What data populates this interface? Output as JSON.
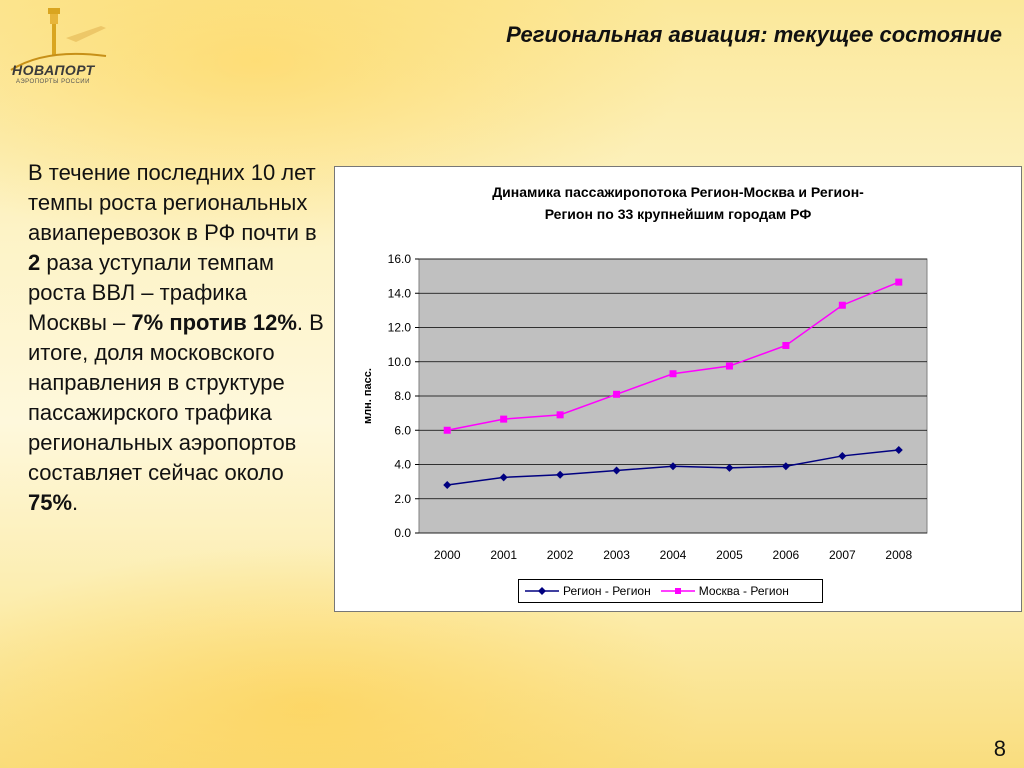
{
  "header": {
    "logo_name": "НОВАПОРТ",
    "logo_sub": "АЭРОПОРТЫ РОССИИ",
    "title": "Региональная авиация: текущее состояние"
  },
  "body": {
    "t1": "В течение последних 10 лет темпы роста региональных авиаперевозок в РФ почти в ",
    "b1": "2",
    "t2": " раза уступали темпам роста ВВЛ – трафика Москвы – ",
    "b2": "7% против 12%",
    "t3": ". В итоге, доля московского направления в структуре пассажирского трафика региональных аэропортов составляет сейчас около ",
    "b3": "75%",
    "t4": "."
  },
  "page_number": "8",
  "colors": {
    "series1": "#000080",
    "series2": "#ff00ff",
    "plot_bg": "#c0c0c0"
  },
  "chart_data": {
    "type": "line",
    "title_line1": "Динамика пассажиропотока Регион-Москва и Регион-",
    "title_line2": "Регион по 33 крупнейшим городам РФ",
    "ylabel": "млн. пасс.",
    "xlabel": "",
    "categories": [
      "2000",
      "2001",
      "2002",
      "2003",
      "2004",
      "2005",
      "2006",
      "2007",
      "2008"
    ],
    "ylim": [
      0,
      16
    ],
    "yticks": [
      "0.0",
      "2.0",
      "4.0",
      "6.0",
      "8.0",
      "10.0",
      "12.0",
      "14.0",
      "16.0"
    ],
    "grid": true,
    "legend_position": "bottom",
    "series": [
      {
        "name": "Регион - Регион",
        "values": [
          2.8,
          3.25,
          3.4,
          3.65,
          3.9,
          3.8,
          3.9,
          4.5,
          4.85
        ]
      },
      {
        "name": "Москва - Регион",
        "values": [
          6.0,
          6.65,
          6.9,
          8.1,
          9.3,
          9.75,
          10.95,
          13.3,
          14.65
        ]
      }
    ]
  }
}
